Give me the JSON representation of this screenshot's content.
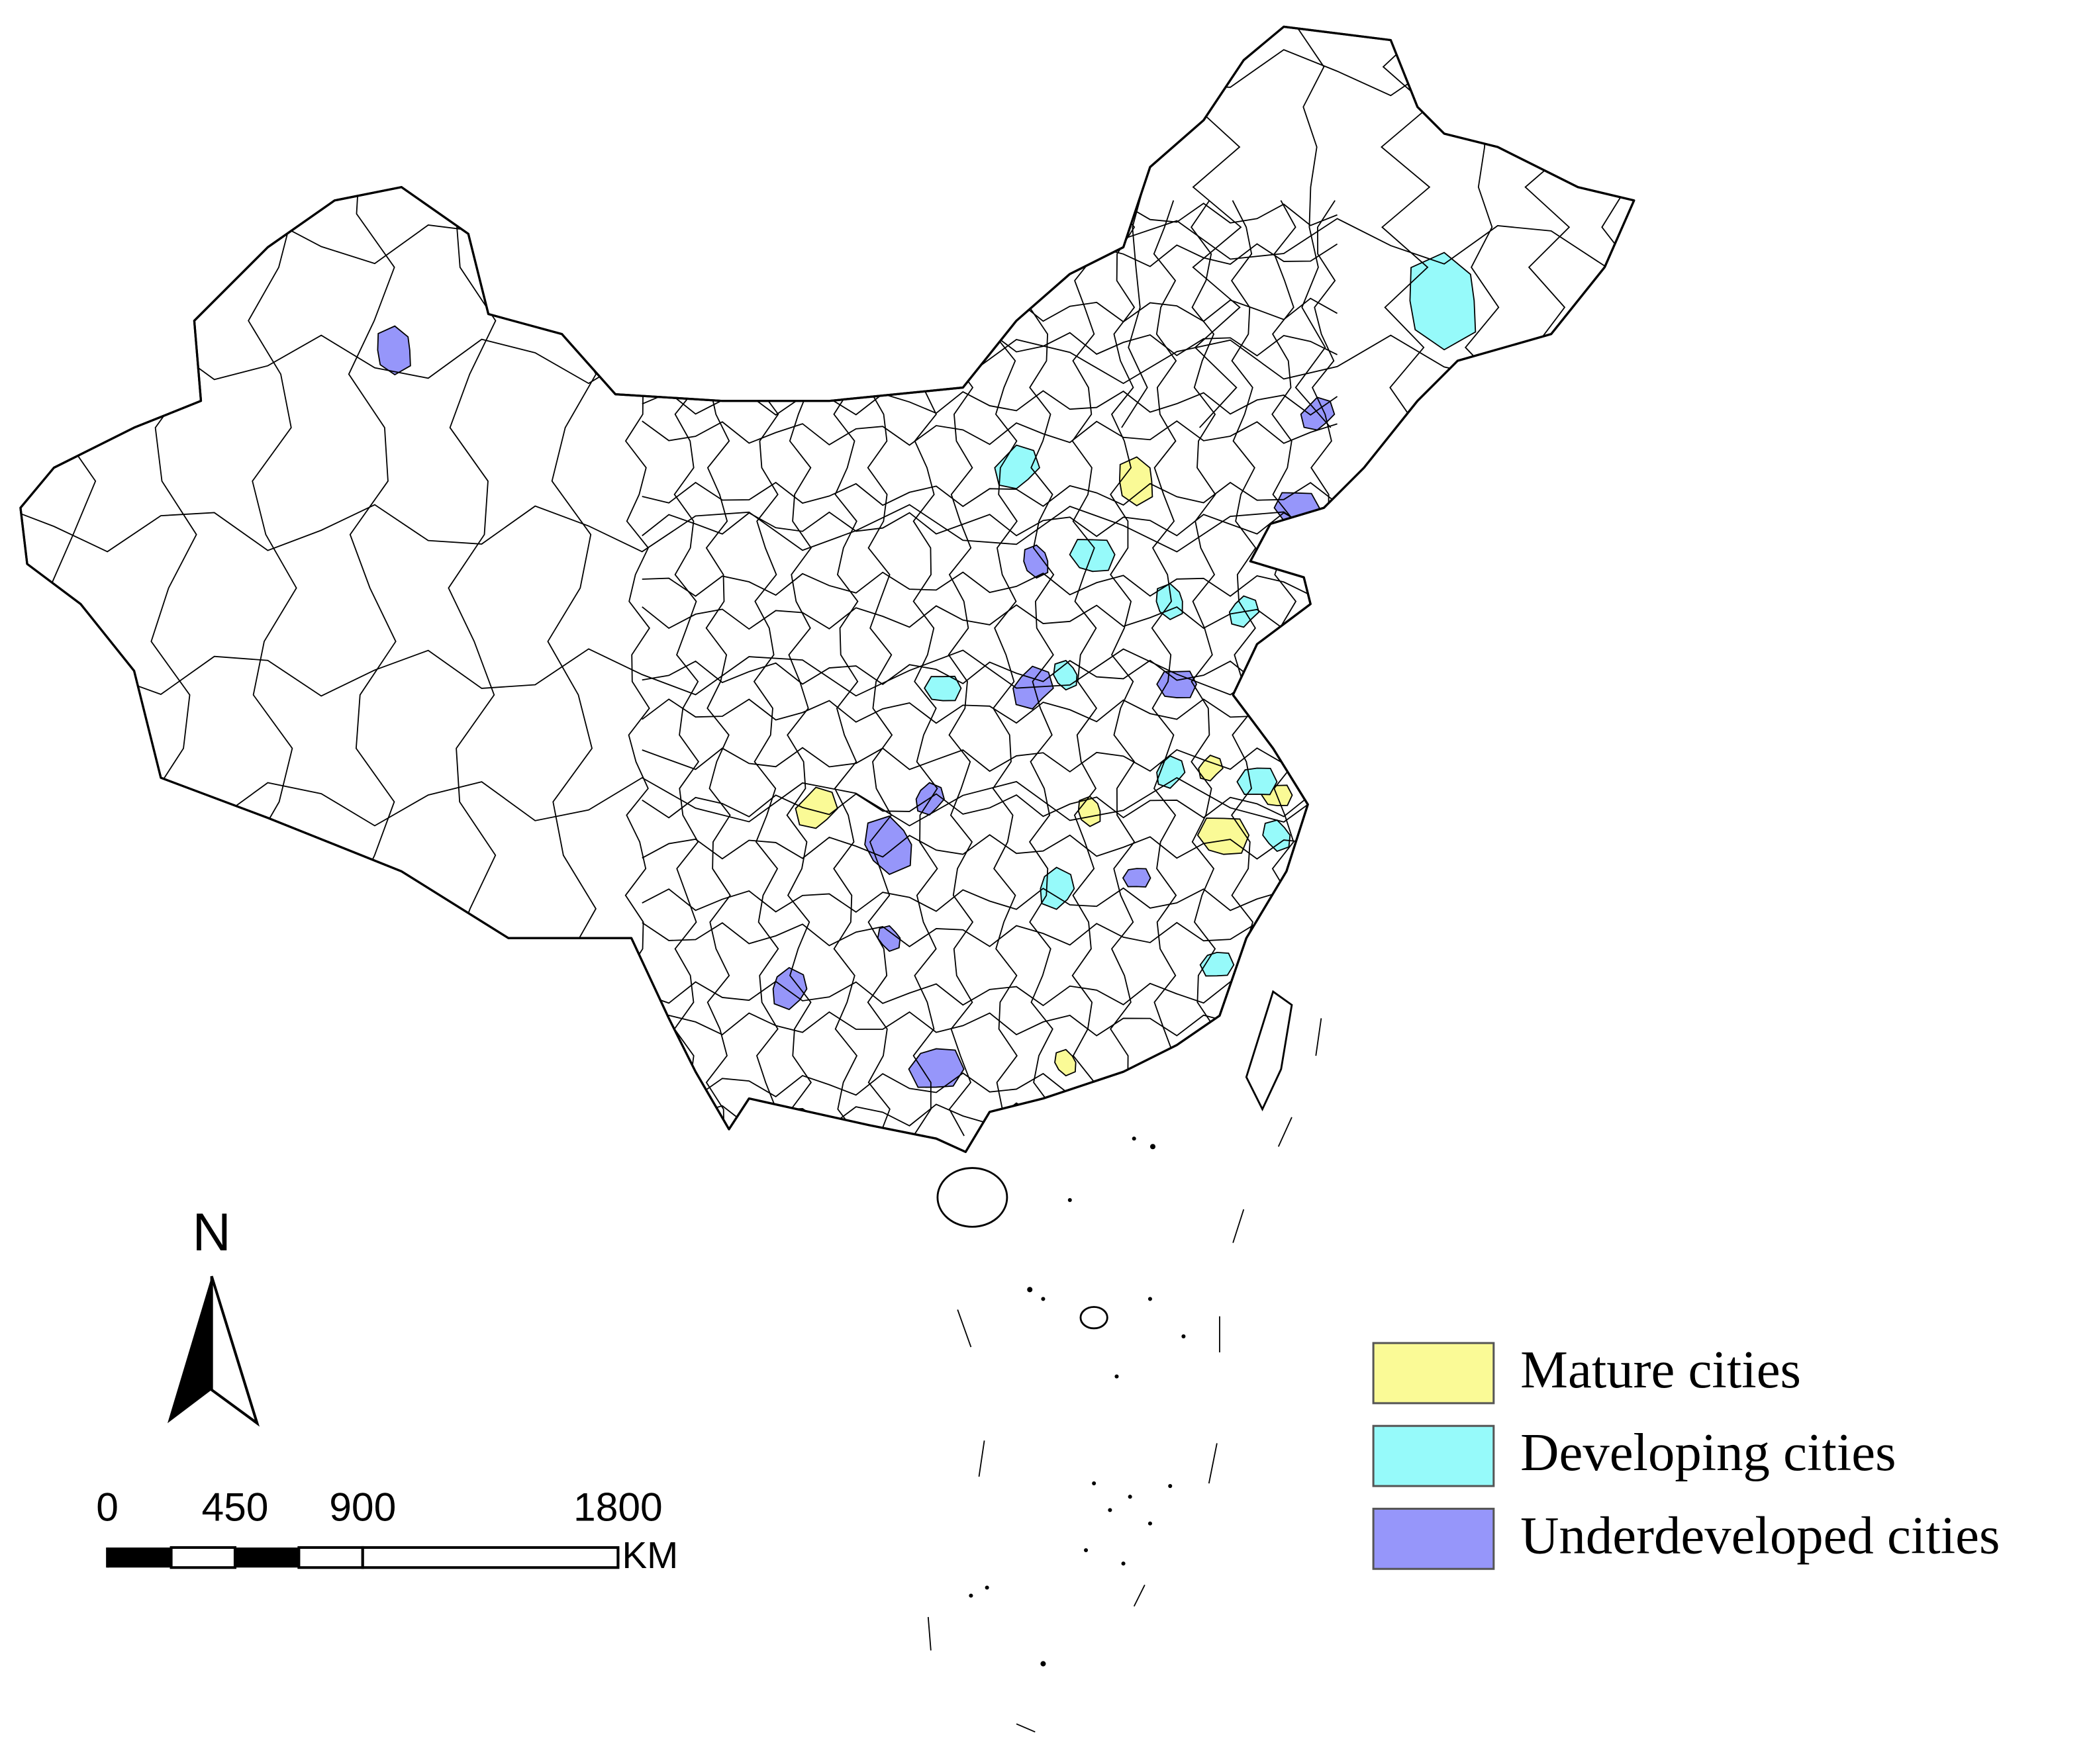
{
  "legend": {
    "items": [
      {
        "label": "Mature cities",
        "color": "#fafa96"
      },
      {
        "label": "Developing cities",
        "color": "#96fafa"
      },
      {
        "label": "Underdeveloped cities",
        "color": "#9696fa"
      }
    ]
  },
  "north_arrow": {
    "label": "N"
  },
  "scale_bar": {
    "ticks": [
      0,
      450,
      900,
      1800
    ],
    "unit": "KM"
  }
}
